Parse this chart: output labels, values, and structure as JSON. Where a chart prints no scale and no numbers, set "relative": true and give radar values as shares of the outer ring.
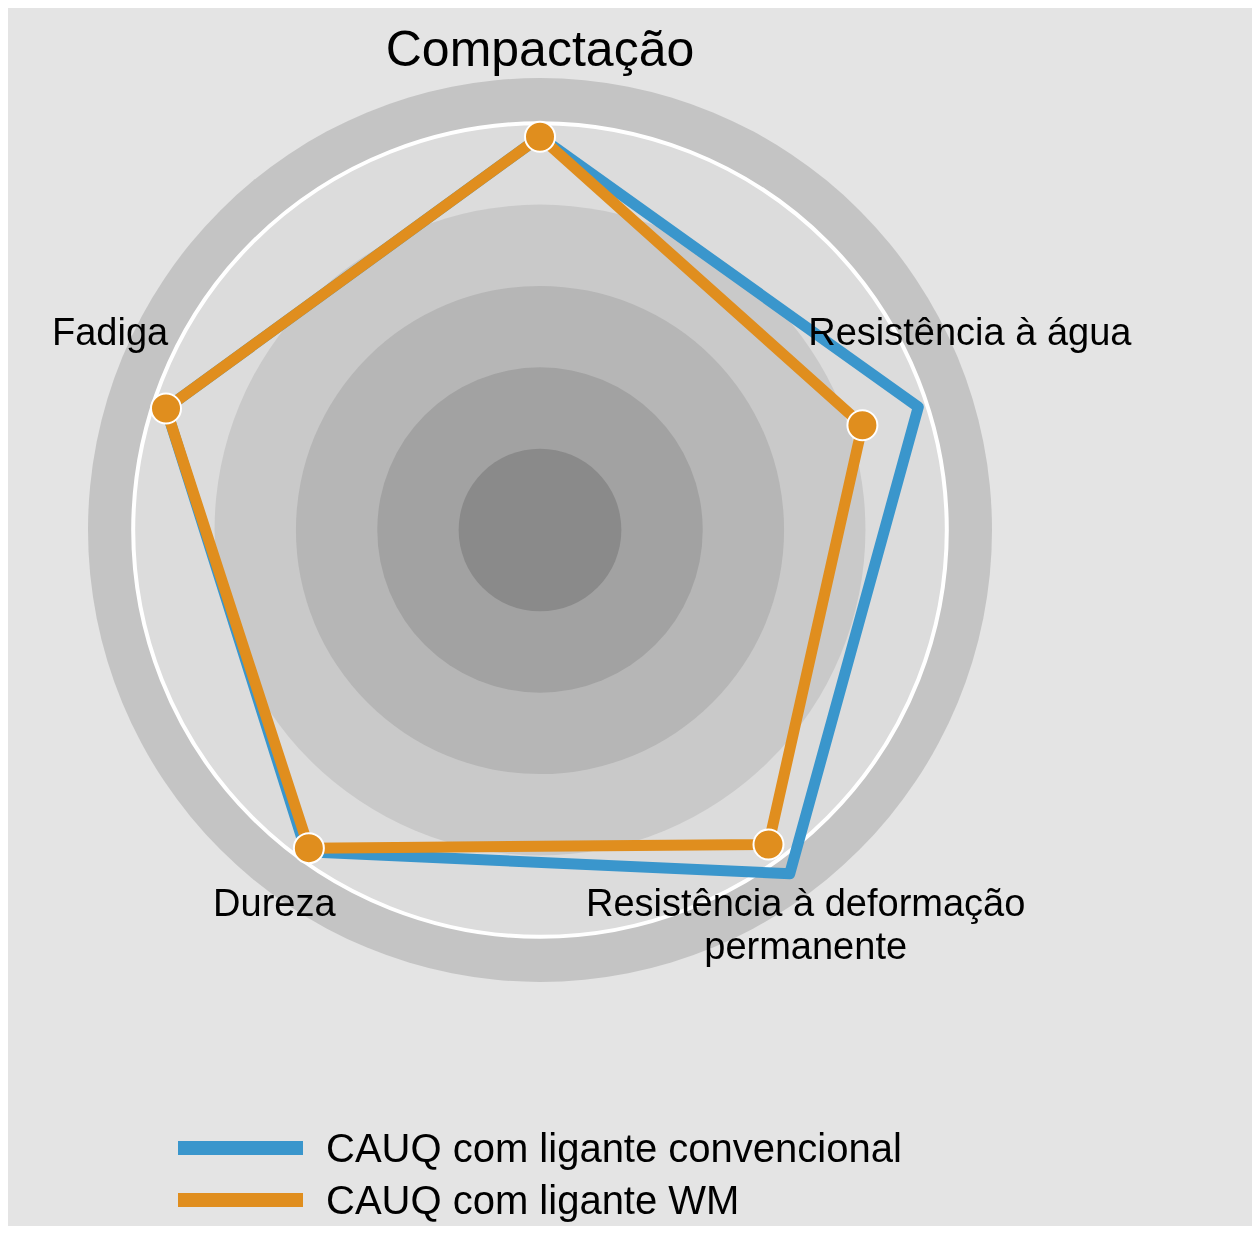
{
  "chart_data": {
    "type": "radar",
    "relative": true,
    "categories": [
      "Compactação",
      "Resistência à água",
      "Resistência à deformação permanente",
      "Dureza",
      "Fadiga"
    ],
    "series": [
      {
        "name": "CAUQ com ligante convencional",
        "color": "#3a96cc",
        "marker": "none",
        "values": [
          0.87,
          0.88,
          0.94,
          0.88,
          0.87
        ]
      },
      {
        "name": "CAUQ com  ligante WM",
        "color": "#e08e1e",
        "marker": "circle",
        "values": [
          0.87,
          0.75,
          0.86,
          0.87,
          0.87
        ]
      }
    ],
    "grid": true,
    "legend": "bottom"
  }
}
